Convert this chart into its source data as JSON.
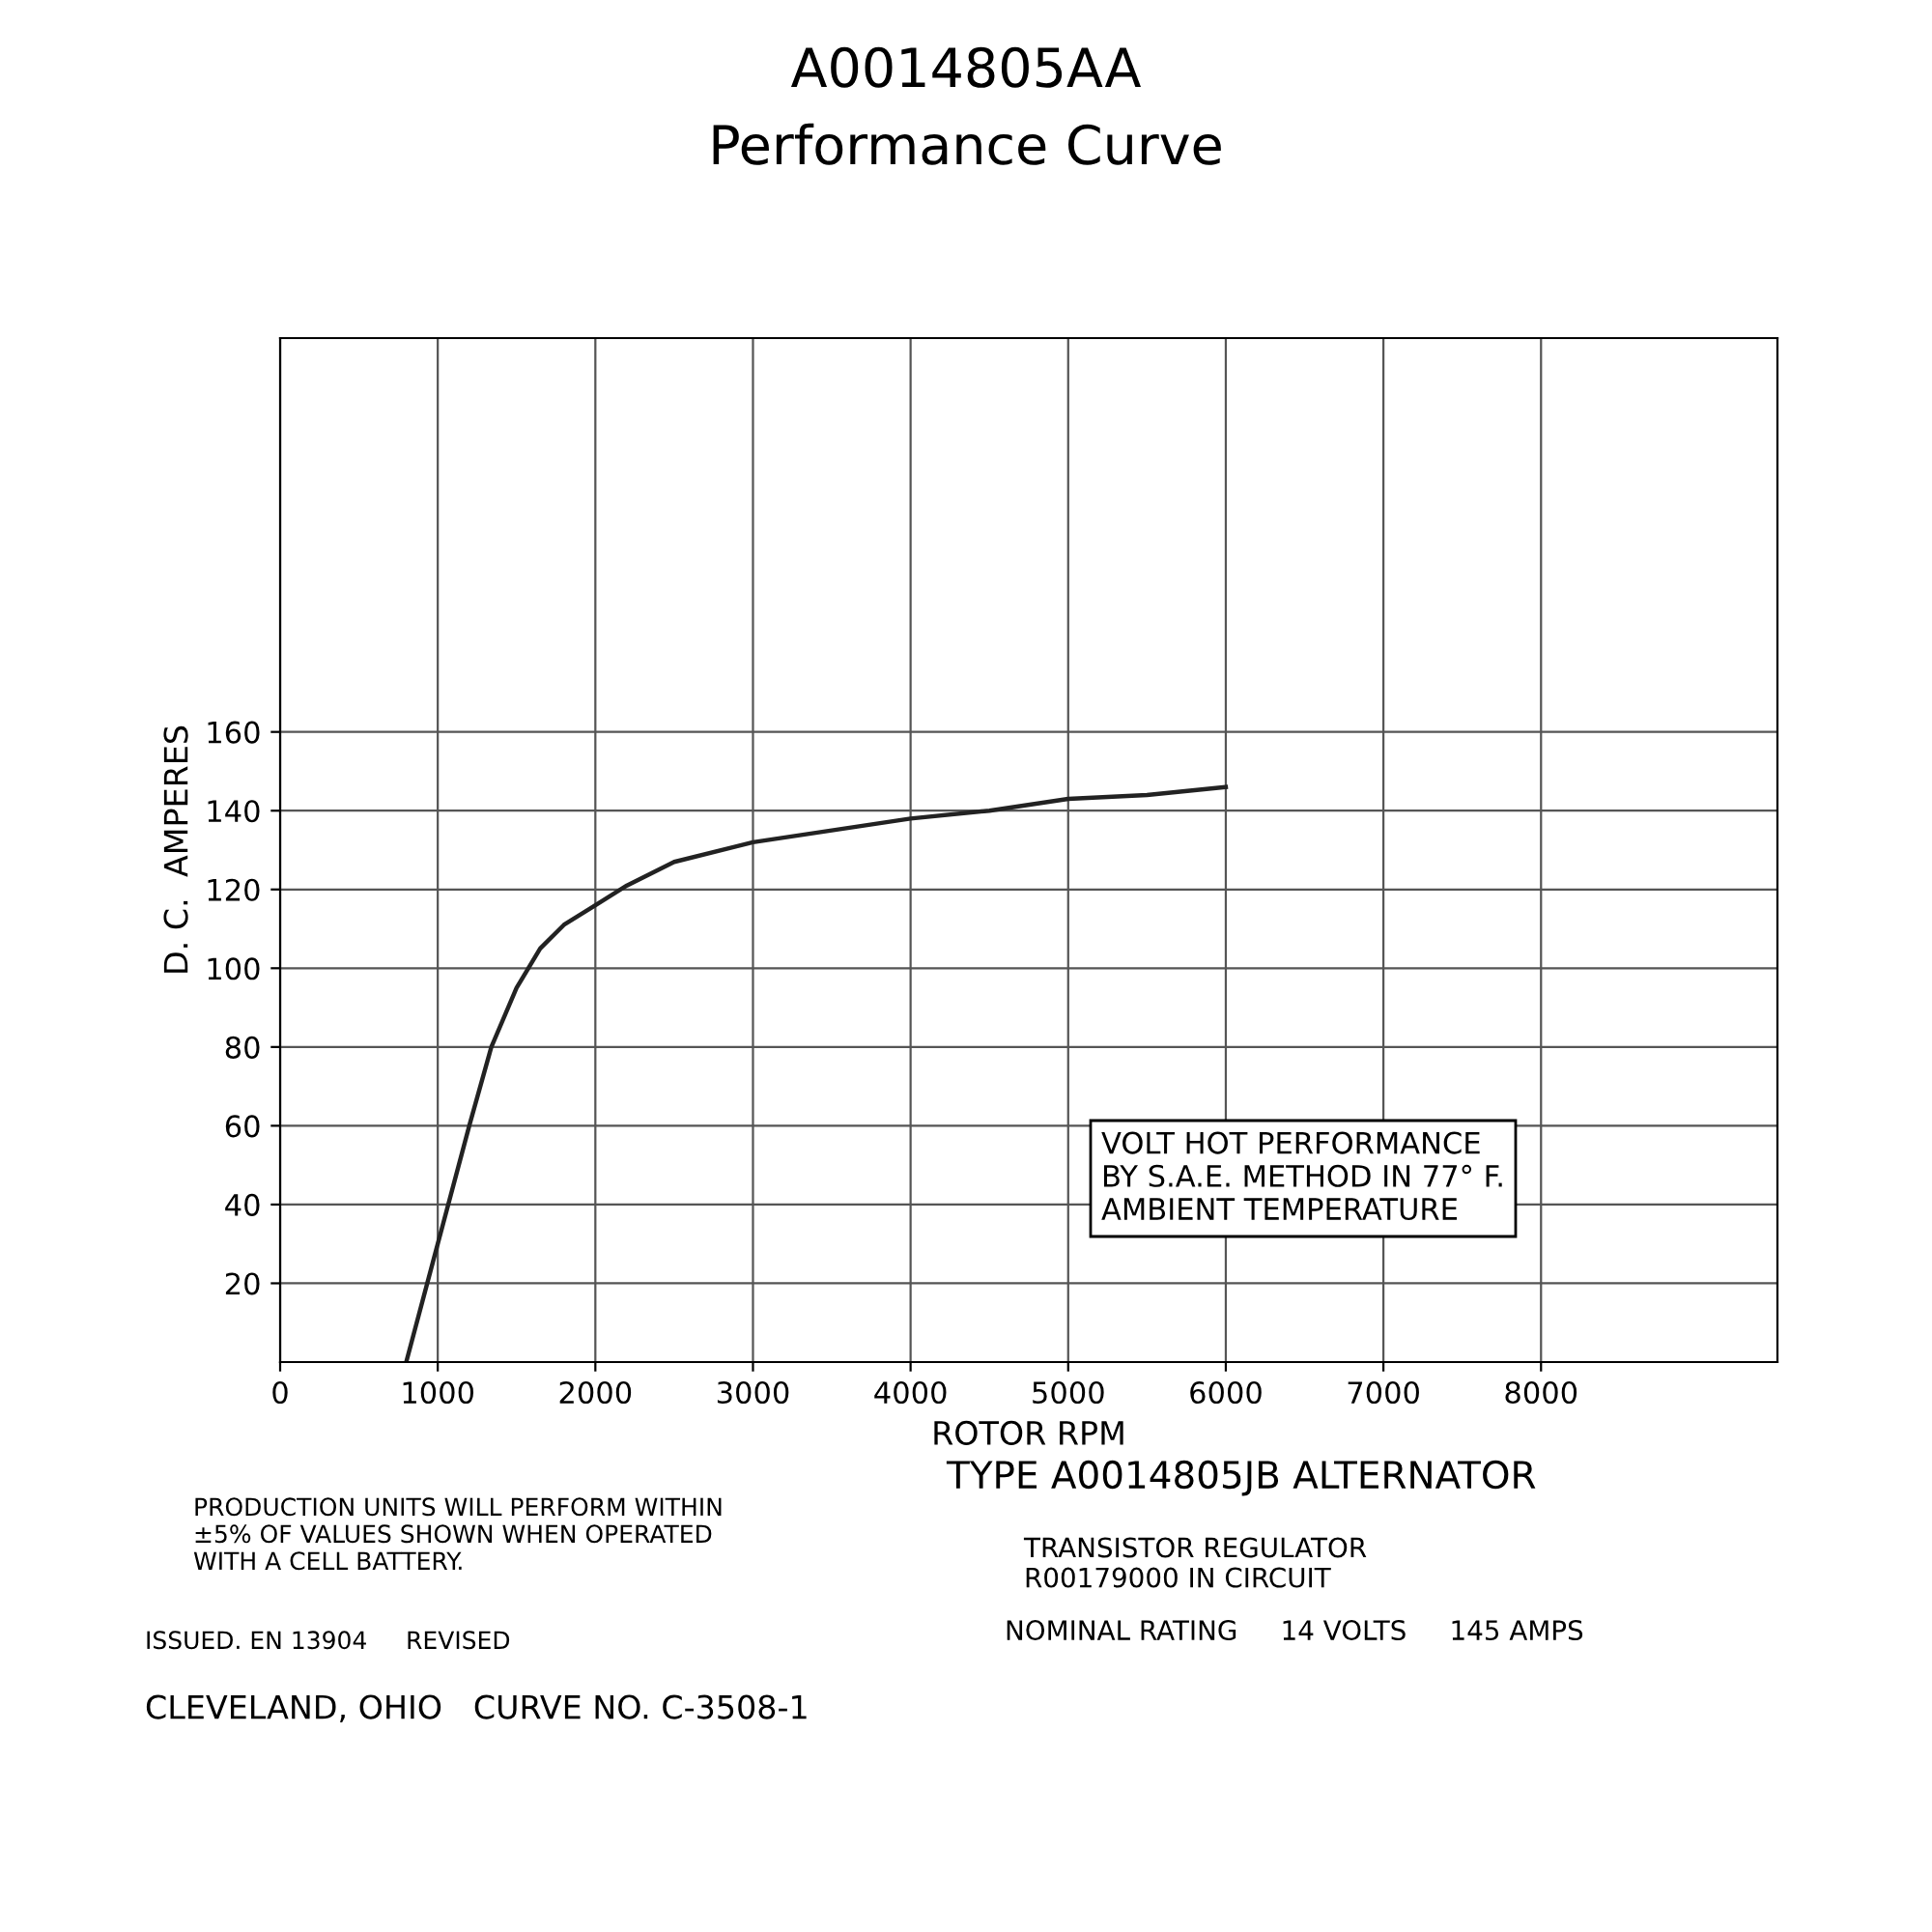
{
  "chart_data": {
    "type": "line",
    "title": "A0014805AA",
    "subtitle": "Performance Curve",
    "xlabel": "ROTOR RPM",
    "ylabel": "D. C.  AMPERES",
    "x": [
      800,
      1000,
      1200,
      1340,
      1500,
      1650,
      1800,
      2000,
      2200,
      2500,
      3000,
      3500,
      4000,
      4500,
      5000,
      5500,
      6000
    ],
    "values": [
      0,
      30,
      60,
      80,
      95,
      105,
      111,
      116,
      121,
      127,
      132,
      135,
      138,
      140,
      143,
      144,
      146
    ],
    "color": "#222222",
    "xlim": [
      0,
      9500
    ],
    "ylim": [
      0,
      260
    ],
    "xticks": [
      0,
      1000,
      2000,
      3000,
      4000,
      5000,
      6000,
      7000,
      8000
    ],
    "yticks": [
      20,
      40,
      60,
      80,
      100,
      120,
      140,
      160
    ],
    "grid": true,
    "marker": "none",
    "line_style": "solid",
    "annotations": [
      "VOLT HOT PERFORMANCE\nBY S.A.E. METHOD IN 77° F.\nAMBIENT TEMPERATURE",
      "PRODUCTION UNITS WILL PERFORM WITHIN\n±5% OF VALUES SHOWN WHEN OPERATED\nWITH A CELL BATTERY.",
      "TYPE A0014805JB ALTERNATOR",
      "TRANSISTOR REGULATOR\nR00179000 IN CIRCUIT",
      "NOMINAL RATING     14 VOLTS     145 AMPS",
      "ISSUED. EN 13904     REVISED",
      "CLEVELAND, OHIO   CURVE NO. C-3508-1"
    ]
  }
}
